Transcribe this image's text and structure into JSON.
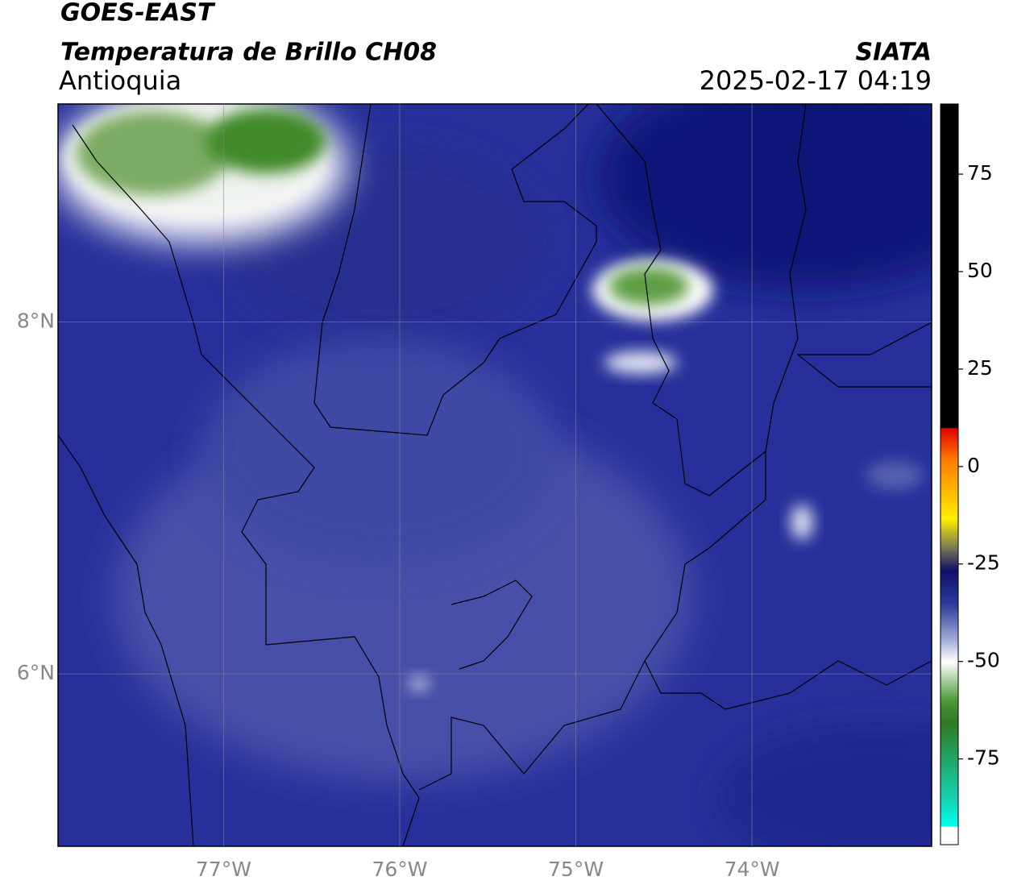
{
  "header": {
    "title": "GOES-EAST",
    "subtitle": "Temperatura de Brillo CH08",
    "region": "Antioquia",
    "source": "SIATA",
    "datetime": "2025-02-17 04:19"
  },
  "map": {
    "lonlim": [
      -77.94,
      -72.98
    ],
    "latlim": [
      5.02,
      9.24
    ],
    "lonticks": [
      {
        "value": -77,
        "label": "77°W"
      },
      {
        "value": -76,
        "label": "76°W"
      },
      {
        "value": -75,
        "label": "75°W"
      },
      {
        "value": -74,
        "label": "74°W"
      }
    ],
    "latticks": [
      {
        "value": 8,
        "label": "8°N"
      },
      {
        "value": 6,
        "label": "6°N"
      }
    ],
    "grid": true
  },
  "colorbar": {
    "lim": [
      -97,
      93
    ],
    "ticks": [
      75,
      50,
      25,
      0,
      -25,
      -50,
      -75
    ]
  }
}
